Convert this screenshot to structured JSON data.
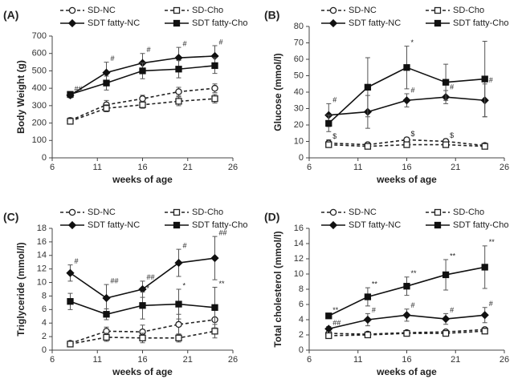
{
  "chart_data": [
    {
      "type": "line",
      "panel": "(A)",
      "ylabel": "Body Weight  (g)",
      "xlabel": "weeks of age",
      "x": [
        8,
        12,
        16,
        20,
        24
      ],
      "xlim": [
        6,
        26
      ],
      "xticks": [
        6,
        11,
        16,
        21,
        26
      ],
      "ylim": [
        0,
        700
      ],
      "yticks": [
        0,
        100,
        200,
        300,
        400,
        500,
        600,
        700
      ],
      "series": [
        {
          "name": "SD-NC",
          "color": "#222222",
          "marker": "circle",
          "filled": false,
          "dashed": true,
          "values": [
            215,
            305,
            340,
            380,
            400
          ],
          "errors": [
            15,
            25,
            20,
            25,
            25
          ],
          "annotations": [
            null,
            null,
            null,
            null,
            null
          ]
        },
        {
          "name": "SD-Cho",
          "color": "#222222",
          "marker": "square",
          "filled": false,
          "dashed": true,
          "values": [
            210,
            285,
            305,
            325,
            340
          ],
          "errors": [
            15,
            20,
            20,
            25,
            25
          ],
          "annotations": [
            null,
            null,
            null,
            null,
            null
          ]
        },
        {
          "name": "SDT fatty-NC",
          "color": "#111111",
          "marker": "diamond",
          "filled": true,
          "dashed": false,
          "values": [
            360,
            490,
            545,
            575,
            585
          ],
          "errors": [
            15,
            60,
            55,
            60,
            60
          ],
          "annotations": [
            "##",
            "#",
            "#",
            "#",
            "#"
          ]
        },
        {
          "name": "SDT fatty-Cho",
          "color": "#111111",
          "marker": "square",
          "filled": true,
          "dashed": false,
          "values": [
            365,
            430,
            500,
            510,
            530
          ],
          "errors": [
            15,
            40,
            45,
            50,
            45
          ],
          "annotations": [
            null,
            null,
            null,
            null,
            null
          ]
        }
      ]
    },
    {
      "type": "line",
      "panel": "(B)",
      "ylabel": "Glucose  (mmol/l)",
      "xlabel": "weeks of age",
      "x": [
        8,
        12,
        16,
        20,
        24
      ],
      "xlim": [
        6,
        26
      ],
      "xticks": [
        6,
        11,
        16,
        21,
        26
      ],
      "ylim": [
        0,
        80
      ],
      "yticks": [
        0,
        10,
        20,
        30,
        40,
        50,
        60,
        70,
        80
      ],
      "series": [
        {
          "name": "SD-NC",
          "color": "#222222",
          "marker": "circle",
          "filled": false,
          "dashed": true,
          "values": [
            9,
            8,
            11,
            10,
            7.5
          ],
          "errors": [
            2,
            1,
            1.5,
            1.5,
            1
          ],
          "annotations": [
            "$",
            null,
            "$",
            "$",
            null
          ]
        },
        {
          "name": "SD-Cho",
          "color": "#222222",
          "marker": "square",
          "filled": false,
          "dashed": true,
          "values": [
            8,
            7,
            8,
            8,
            7
          ],
          "errors": [
            1.5,
            1,
            1,
            1,
            1
          ],
          "annotations": [
            null,
            null,
            null,
            null,
            null
          ]
        },
        {
          "name": "SDT fatty-NC",
          "color": "#111111",
          "marker": "diamond",
          "filled": true,
          "dashed": false,
          "values": [
            26,
            28,
            35,
            37,
            35
          ],
          "errors": [
            7,
            10,
            4,
            4,
            10
          ],
          "annotations": [
            "#",
            null,
            "#",
            "#",
            "#"
          ]
        },
        {
          "name": "SDT fatty-Cho",
          "color": "#111111",
          "marker": "square",
          "filled": true,
          "dashed": false,
          "values": [
            21,
            43,
            55,
            46,
            48
          ],
          "errors": [
            5,
            18,
            13,
            11,
            23
          ],
          "annotations": [
            null,
            null,
            "*",
            null,
            null
          ]
        }
      ]
    },
    {
      "type": "line",
      "panel": "(C)",
      "ylabel": "Triglyceride  (mmol/l)",
      "xlabel": "weeks of age",
      "x": [
        8,
        12,
        16,
        20,
        24
      ],
      "xlim": [
        6,
        26
      ],
      "xticks": [
        6,
        11,
        16,
        21,
        26
      ],
      "ylim": [
        0,
        18
      ],
      "yticks": [
        0,
        2,
        4,
        6,
        8,
        10,
        12,
        14,
        16,
        18
      ],
      "series": [
        {
          "name": "SD-NC",
          "color": "#222222",
          "marker": "circle",
          "filled": false,
          "dashed": true,
          "values": [
            1.0,
            2.8,
            2.7,
            3.8,
            4.5
          ],
          "errors": [
            0.3,
            0.6,
            1,
            1.5,
            1.5
          ],
          "annotations": [
            null,
            null,
            null,
            null,
            null
          ]
        },
        {
          "name": "SD-Cho",
          "color": "#222222",
          "marker": "square",
          "filled": false,
          "dashed": true,
          "values": [
            0.9,
            1.9,
            1.8,
            1.8,
            2.8
          ],
          "errors": [
            0.3,
            0.6,
            0.7,
            0.6,
            1
          ],
          "annotations": [
            null,
            null,
            null,
            null,
            null
          ]
        },
        {
          "name": "SDT fatty-NC",
          "color": "#111111",
          "marker": "diamond",
          "filled": true,
          "dashed": false,
          "values": [
            11.4,
            7.7,
            9.0,
            12.9,
            13.6
          ],
          "errors": [
            1.2,
            2,
            1.2,
            2,
            3.2
          ],
          "annotations": [
            "#",
            "##",
            "##",
            "#",
            "##"
          ]
        },
        {
          "name": "SDT fatty-Cho",
          "color": "#111111",
          "marker": "square",
          "filled": true,
          "dashed": false,
          "values": [
            7.2,
            5.3,
            6.6,
            6.8,
            6.3
          ],
          "errors": [
            1.2,
            0.8,
            2,
            2.2,
            3
          ],
          "annotations": [
            null,
            null,
            "*",
            "*",
            "**"
          ]
        }
      ]
    },
    {
      "type": "line",
      "panel": "(D)",
      "ylabel": "Total cholesterol  (mmol/l)",
      "xlabel": "weeks of age",
      "x": [
        8,
        12,
        16,
        20,
        24
      ],
      "xlim": [
        6,
        26
      ],
      "xticks": [
        6,
        11,
        16,
        21,
        26
      ],
      "ylim": [
        0,
        16
      ],
      "yticks": [
        0,
        2,
        4,
        6,
        8,
        10,
        12,
        14,
        16
      ],
      "series": [
        {
          "name": "SD-NC",
          "color": "#222222",
          "marker": "circle",
          "filled": false,
          "dashed": true,
          "values": [
            2.2,
            2.1,
            2.3,
            2.4,
            2.7
          ],
          "errors": [
            0.2,
            0.2,
            0.2,
            0.2,
            0.2
          ],
          "annotations": [
            null,
            null,
            null,
            null,
            null
          ]
        },
        {
          "name": "SD-Cho",
          "color": "#222222",
          "marker": "square",
          "filled": false,
          "dashed": true,
          "values": [
            1.9,
            2.0,
            2.2,
            2.2,
            2.5
          ],
          "errors": [
            0.2,
            0.2,
            0.2,
            0.2,
            0.2
          ],
          "annotations": [
            null,
            null,
            null,
            null,
            null
          ]
        },
        {
          "name": "SDT fatty-NC",
          "color": "#111111",
          "marker": "diamond",
          "filled": true,
          "dashed": false,
          "values": [
            2.8,
            4.0,
            4.6,
            4.1,
            4.6
          ],
          "errors": [
            0.3,
            0.8,
            0.8,
            0.7,
            1
          ],
          "annotations": [
            "##",
            "#",
            "#",
            "#",
            "#"
          ]
        },
        {
          "name": "SDT fatty-Cho",
          "color": "#111111",
          "marker": "square",
          "filled": true,
          "dashed": false,
          "values": [
            4.5,
            7.0,
            8.4,
            9.9,
            10.9
          ],
          "errors": [
            0.3,
            1.2,
            1.2,
            2,
            2.8
          ],
          "annotations": [
            "**",
            "**",
            "**",
            "**",
            "**"
          ]
        }
      ]
    }
  ]
}
